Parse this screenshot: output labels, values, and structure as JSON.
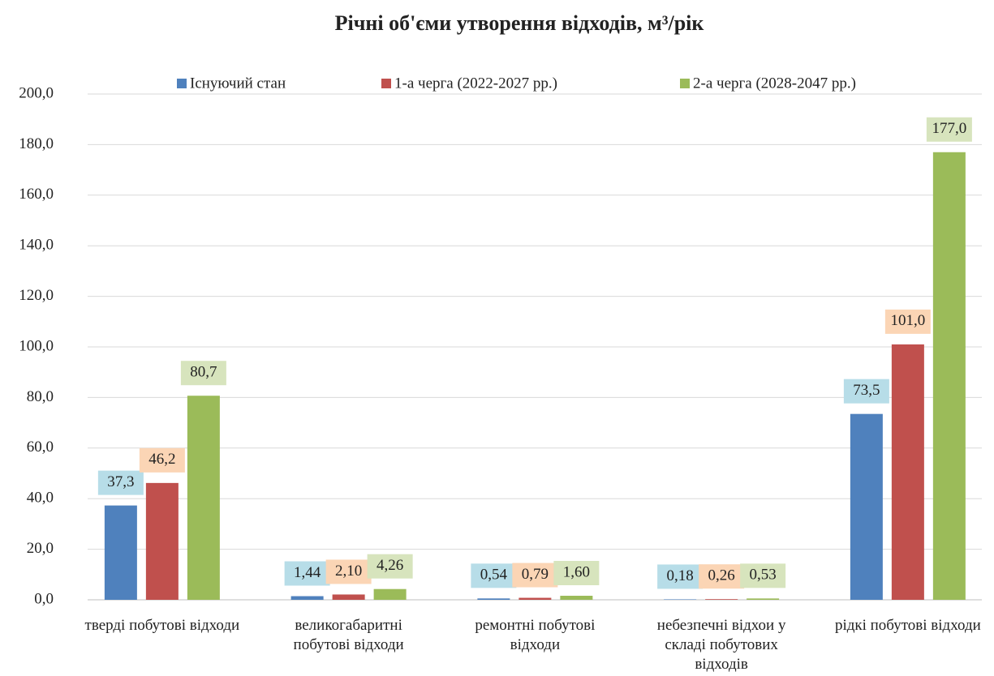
{
  "chart_data": {
    "type": "bar",
    "title": "Річні об'єми утворення відходів, м³/рік",
    "categories": [
      "тверді побутові відходи",
      "великогабаритні побутові відходи",
      "ремонтні побутові відходи",
      "небезпечні відхои у складі побутових відходів",
      "рідкі побутові відходи"
    ],
    "series": [
      {
        "name": "Існуючий стан",
        "color": "#4f81bd",
        "label_bg": "#b7dde8",
        "values": [
          37.3,
          1.44,
          0.54,
          0.18,
          73.5
        ],
        "value_labels": [
          "37,3",
          "1,44",
          "0,54",
          "0,18",
          "73,5"
        ]
      },
      {
        "name": "1-а черга (2022-2027 рр.)",
        "color": "#c0504d",
        "label_bg": "#fbd5b5",
        "values": [
          46.2,
          2.1,
          0.79,
          0.26,
          101.0
        ],
        "value_labels": [
          "46,2",
          "2,10",
          "0,79",
          "0,26",
          "101,0"
        ]
      },
      {
        "name": "2-а черга (2028-2047 рр.)",
        "color": "#9bbb59",
        "label_bg": "#d7e4bd",
        "values": [
          80.7,
          4.26,
          1.6,
          0.53,
          177.0
        ],
        "value_labels": [
          "80,7",
          "4,26",
          "1,60",
          "0,53",
          "177,0"
        ]
      }
    ],
    "ylim": [
      0,
      200
    ],
    "yticks": [
      {
        "value": 0,
        "label": "0,0"
      },
      {
        "value": 20,
        "label": "20,0"
      },
      {
        "value": 40,
        "label": "40,0"
      },
      {
        "value": 60,
        "label": "60,0"
      },
      {
        "value": 80,
        "label": "80,0"
      },
      {
        "value": 100,
        "label": "100,0"
      },
      {
        "value": 120,
        "label": "120,0"
      },
      {
        "value": 140,
        "label": "140,0"
      },
      {
        "value": 160,
        "label": "160,0"
      },
      {
        "value": 180,
        "label": "180,0"
      },
      {
        "value": 200,
        "label": "200,0"
      }
    ],
    "grid": true,
    "legend": "top"
  }
}
